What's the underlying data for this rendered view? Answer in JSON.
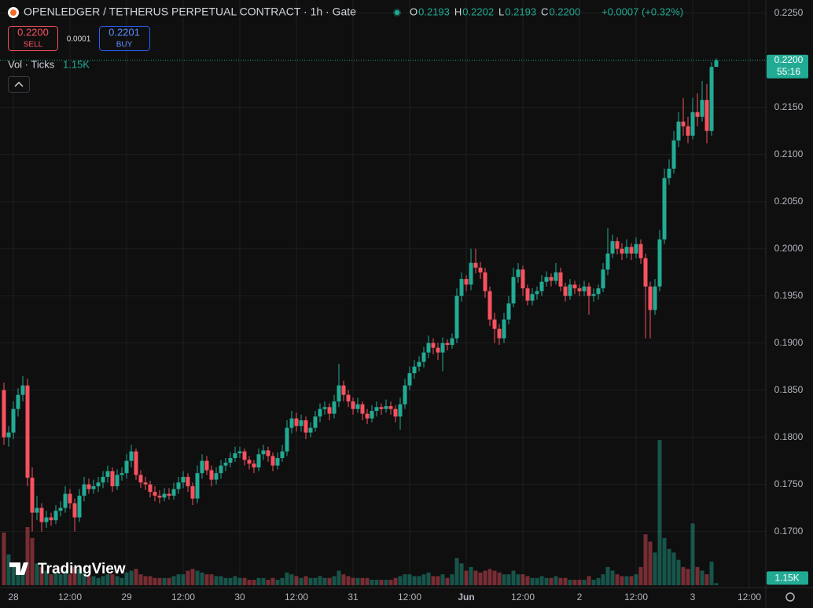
{
  "header": {
    "symbol": "OPENLEDGER / TETHERUS PERPETUAL CONTRACT · 1h · Gate",
    "ohlc": [
      {
        "key": "O",
        "value": "0.2193"
      },
      {
        "key": "H",
        "value": "0.2202"
      },
      {
        "key": "L",
        "value": "0.2193"
      },
      {
        "key": "C",
        "value": "0.2200"
      }
    ],
    "change": "+0.0007 (+0.32%)"
  },
  "trade": {
    "sell_price": "0.2200",
    "sell": "SELL",
    "spread": "0.0001",
    "buy_price": "0.2201",
    "buy": "BUY"
  },
  "volume_legend": {
    "label": "Vol · Ticks",
    "value": "1.15K"
  },
  "branding": "TradingView",
  "chart_data": {
    "type": "candlestick",
    "up_color": "#22ab94",
    "down_color": "#f7525f",
    "grid": true,
    "ylim": [
      0.1643,
      0.2264
    ],
    "volume_ylim": [
      0,
      80
    ],
    "yticks": [
      {
        "value": 0.17,
        "label": "0.1700"
      },
      {
        "value": 0.175,
        "label": "0.1750"
      },
      {
        "value": 0.18,
        "label": "0.1800"
      },
      {
        "value": 0.185,
        "label": "0.1850"
      },
      {
        "value": 0.19,
        "label": "0.1900"
      },
      {
        "value": 0.195,
        "label": "0.1950"
      },
      {
        "value": 0.2,
        "label": "0.2000"
      },
      {
        "value": 0.205,
        "label": "0.2050"
      },
      {
        "value": 0.21,
        "label": "0.2100"
      },
      {
        "value": 0.215,
        "label": "0.2150"
      },
      {
        "value": 0.225,
        "label": "0.2250"
      }
    ],
    "last_price": {
      "value": 0.22,
      "label": "0.2200"
    },
    "countdown": "55:16",
    "last_volume": {
      "value": 1.15,
      "label": "1.15K"
    },
    "categories": [
      null,
      null,
      "28",
      null,
      null,
      null,
      null,
      null,
      null,
      null,
      null,
      null,
      null,
      null,
      "12:00",
      null,
      null,
      null,
      null,
      null,
      null,
      null,
      null,
      null,
      null,
      null,
      "29",
      null,
      null,
      null,
      null,
      null,
      null,
      null,
      null,
      null,
      null,
      null,
      "12:00",
      null,
      null,
      null,
      null,
      null,
      null,
      null,
      null,
      null,
      null,
      null,
      "30",
      null,
      null,
      null,
      null,
      null,
      null,
      null,
      null,
      null,
      null,
      null,
      "12:00",
      null,
      null,
      null,
      null,
      null,
      null,
      null,
      null,
      null,
      null,
      null,
      "31",
      null,
      null,
      null,
      null,
      null,
      null,
      null,
      null,
      null,
      null,
      null,
      "12:00",
      null,
      null,
      null,
      null,
      null,
      null,
      null,
      null,
      null,
      null,
      null,
      "Jun",
      null,
      null,
      null,
      null,
      null,
      null,
      null,
      null,
      null,
      null,
      null,
      "12:00",
      null,
      null,
      null,
      null,
      null,
      null,
      null,
      null,
      null,
      null,
      null,
      "2",
      null,
      null,
      null,
      null,
      null,
      null,
      null,
      null,
      null,
      null,
      null,
      "12:00",
      null,
      null,
      null,
      null,
      null,
      null,
      null,
      null,
      null,
      null,
      null,
      "3",
      null,
      null,
      null,
      null,
      null,
      null,
      null,
      null,
      null,
      null,
      null,
      "12:00",
      null
    ],
    "candles": [
      [
        0.185,
        0.1858,
        0.1792,
        0.18,
        29
      ],
      [
        0.18,
        0.1812,
        0.179,
        0.1805,
        17
      ],
      [
        0.1805,
        0.1838,
        0.1798,
        0.183,
        12
      ],
      [
        0.183,
        0.1852,
        0.1822,
        0.1845,
        10
      ],
      [
        0.1845,
        0.1865,
        0.1838,
        0.1855,
        9
      ],
      [
        0.1855,
        0.1862,
        0.1748,
        0.1757,
        32
      ],
      [
        0.1757,
        0.1768,
        0.17,
        0.172,
        26
      ],
      [
        0.172,
        0.1738,
        0.1712,
        0.1725,
        12
      ],
      [
        0.1725,
        0.173,
        0.17,
        0.171,
        10
      ],
      [
        0.171,
        0.1722,
        0.1704,
        0.1715,
        8
      ],
      [
        0.1715,
        0.172,
        0.1706,
        0.1712,
        6
      ],
      [
        0.1712,
        0.1728,
        0.1708,
        0.1722,
        7
      ],
      [
        0.1722,
        0.1732,
        0.1716,
        0.1725,
        6
      ],
      [
        0.1725,
        0.1748,
        0.172,
        0.174,
        8
      ],
      [
        0.174,
        0.1745,
        0.1724,
        0.173,
        6
      ],
      [
        0.173,
        0.1735,
        0.17,
        0.1715,
        10
      ],
      [
        0.1715,
        0.1745,
        0.171,
        0.1738,
        9
      ],
      [
        0.1738,
        0.1758,
        0.1732,
        0.175,
        7
      ],
      [
        0.175,
        0.1756,
        0.174,
        0.1745,
        5
      ],
      [
        0.1745,
        0.1755,
        0.174,
        0.1748,
        5
      ],
      [
        0.1748,
        0.1758,
        0.1742,
        0.1752,
        4
      ],
      [
        0.1752,
        0.1764,
        0.1746,
        0.1758,
        5
      ],
      [
        0.1758,
        0.177,
        0.1752,
        0.1764,
        6
      ],
      [
        0.1764,
        0.1768,
        0.1742,
        0.1748,
        6
      ],
      [
        0.1748,
        0.1766,
        0.1744,
        0.176,
        5
      ],
      [
        0.176,
        0.1768,
        0.1754,
        0.1762,
        4
      ],
      [
        0.1762,
        0.1782,
        0.1756,
        0.1775,
        7
      ],
      [
        0.1775,
        0.1792,
        0.1768,
        0.1785,
        8
      ],
      [
        0.1785,
        0.1788,
        0.1755,
        0.176,
        9
      ],
      [
        0.176,
        0.1765,
        0.1746,
        0.1752,
        6
      ],
      [
        0.1752,
        0.1758,
        0.1744,
        0.175,
        5
      ],
      [
        0.175,
        0.1754,
        0.1736,
        0.1742,
        5
      ],
      [
        0.1742,
        0.1748,
        0.1732,
        0.1738,
        4
      ],
      [
        0.1738,
        0.1744,
        0.173,
        0.1736,
        4
      ],
      [
        0.1736,
        0.1746,
        0.1732,
        0.174,
        4
      ],
      [
        0.174,
        0.1746,
        0.1734,
        0.1738,
        4
      ],
      [
        0.1738,
        0.1752,
        0.1734,
        0.1745,
        5
      ],
      [
        0.1745,
        0.1758,
        0.174,
        0.1752,
        6
      ],
      [
        0.1752,
        0.1764,
        0.1746,
        0.1758,
        6
      ],
      [
        0.1758,
        0.1762,
        0.1742,
        0.1748,
        8
      ],
      [
        0.1748,
        0.1752,
        0.1728,
        0.1735,
        9
      ],
      [
        0.1735,
        0.177,
        0.173,
        0.1762,
        8
      ],
      [
        0.1762,
        0.1782,
        0.1756,
        0.1775,
        7
      ],
      [
        0.1775,
        0.178,
        0.176,
        0.1765,
        6
      ],
      [
        0.1765,
        0.177,
        0.1748,
        0.1755,
        6
      ],
      [
        0.1755,
        0.1768,
        0.175,
        0.1762,
        5
      ],
      [
        0.1762,
        0.1776,
        0.1756,
        0.177,
        5
      ],
      [
        0.177,
        0.1778,
        0.1764,
        0.1773,
        4
      ],
      [
        0.1773,
        0.1784,
        0.1768,
        0.1778,
        4
      ],
      [
        0.1778,
        0.179,
        0.1774,
        0.1783,
        5
      ],
      [
        0.1783,
        0.179,
        0.1778,
        0.1785,
        4
      ],
      [
        0.1785,
        0.1788,
        0.177,
        0.1776,
        4
      ],
      [
        0.1776,
        0.178,
        0.1766,
        0.1772,
        3
      ],
      [
        0.1772,
        0.1776,
        0.1762,
        0.1768,
        3
      ],
      [
        0.1768,
        0.1788,
        0.1764,
        0.1782,
        4
      ],
      [
        0.1782,
        0.1792,
        0.1776,
        0.1786,
        4
      ],
      [
        0.1786,
        0.179,
        0.1774,
        0.178,
        3
      ],
      [
        0.178,
        0.1784,
        0.1764,
        0.177,
        4
      ],
      [
        0.177,
        0.1784,
        0.1766,
        0.1778,
        3
      ],
      [
        0.1778,
        0.1792,
        0.1774,
        0.1785,
        4
      ],
      [
        0.1785,
        0.1818,
        0.178,
        0.181,
        7
      ],
      [
        0.181,
        0.1828,
        0.1804,
        0.182,
        6
      ],
      [
        0.182,
        0.1826,
        0.1806,
        0.1812,
        5
      ],
      [
        0.1812,
        0.1824,
        0.1806,
        0.1818,
        4
      ],
      [
        0.1818,
        0.1822,
        0.1798,
        0.1805,
        5
      ],
      [
        0.1805,
        0.1816,
        0.18,
        0.181,
        4
      ],
      [
        0.181,
        0.1828,
        0.1806,
        0.1822,
        4
      ],
      [
        0.1822,
        0.1836,
        0.1816,
        0.183,
        5
      ],
      [
        0.183,
        0.1838,
        0.1824,
        0.1832,
        4
      ],
      [
        0.1832,
        0.1836,
        0.1818,
        0.1825,
        4
      ],
      [
        0.1825,
        0.1845,
        0.182,
        0.1838,
        5
      ],
      [
        0.1838,
        0.1878,
        0.1832,
        0.1855,
        8
      ],
      [
        0.1855,
        0.186,
        0.1838,
        0.1845,
        6
      ],
      [
        0.1845,
        0.185,
        0.1832,
        0.1838,
        5
      ],
      [
        0.1838,
        0.1842,
        0.1824,
        0.183,
        4
      ],
      [
        0.183,
        0.1842,
        0.1826,
        0.1835,
        4
      ],
      [
        0.1835,
        0.1838,
        0.1818,
        0.1825,
        4
      ],
      [
        0.1825,
        0.183,
        0.1814,
        0.182,
        4
      ],
      [
        0.182,
        0.1834,
        0.1816,
        0.1828,
        3
      ],
      [
        0.1828,
        0.1838,
        0.1822,
        0.1832,
        3
      ],
      [
        0.1832,
        0.1836,
        0.1824,
        0.183,
        3
      ],
      [
        0.183,
        0.184,
        0.1826,
        0.1833,
        3
      ],
      [
        0.1833,
        0.1838,
        0.1824,
        0.183,
        3
      ],
      [
        0.183,
        0.1834,
        0.1816,
        0.1822,
        4
      ],
      [
        0.1822,
        0.1842,
        0.1808,
        0.1835,
        5
      ],
      [
        0.1835,
        0.1862,
        0.183,
        0.1855,
        6
      ],
      [
        0.1855,
        0.1875,
        0.185,
        0.1868,
        6
      ],
      [
        0.1868,
        0.1882,
        0.1862,
        0.1875,
        5
      ],
      [
        0.1875,
        0.1886,
        0.187,
        0.188,
        5
      ],
      [
        0.188,
        0.1896,
        0.1874,
        0.189,
        6
      ],
      [
        0.189,
        0.1908,
        0.1884,
        0.19,
        7
      ],
      [
        0.19,
        0.1905,
        0.1888,
        0.1895,
        5
      ],
      [
        0.1895,
        0.19,
        0.1882,
        0.189,
        5
      ],
      [
        0.189,
        0.1906,
        0.187,
        0.19,
        6
      ],
      [
        0.19,
        0.1904,
        0.1892,
        0.1898,
        4
      ],
      [
        0.1898,
        0.191,
        0.1894,
        0.1905,
        6
      ],
      [
        0.1905,
        0.1958,
        0.19,
        0.195,
        15
      ],
      [
        0.195,
        0.1975,
        0.1944,
        0.1968,
        12
      ],
      [
        0.1968,
        0.1972,
        0.1955,
        0.1962,
        8
      ],
      [
        0.1962,
        0.2,
        0.1956,
        0.1985,
        10
      ],
      [
        0.1985,
        0.2,
        0.1974,
        0.198,
        8
      ],
      [
        0.198,
        0.1986,
        0.1968,
        0.1975,
        7
      ],
      [
        0.1975,
        0.198,
        0.1948,
        0.1955,
        8
      ],
      [
        0.1955,
        0.196,
        0.1918,
        0.1925,
        9
      ],
      [
        0.1925,
        0.1932,
        0.19,
        0.1915,
        8
      ],
      [
        0.1915,
        0.192,
        0.1898,
        0.1905,
        7
      ],
      [
        0.1905,
        0.1932,
        0.19,
        0.1925,
        6
      ],
      [
        0.1925,
        0.195,
        0.192,
        0.1942,
        6
      ],
      [
        0.1942,
        0.198,
        0.1938,
        0.197,
        8
      ],
      [
        0.197,
        0.1985,
        0.1964,
        0.1978,
        6
      ],
      [
        0.1978,
        0.1982,
        0.195,
        0.1958,
        6
      ],
      [
        0.1958,
        0.1962,
        0.194,
        0.1945,
        5
      ],
      [
        0.1945,
        0.1958,
        0.194,
        0.1952,
        4
      ],
      [
        0.1952,
        0.196,
        0.1946,
        0.1955,
        4
      ],
      [
        0.1955,
        0.1972,
        0.195,
        0.1965,
        5
      ],
      [
        0.1965,
        0.1976,
        0.196,
        0.197,
        4
      ],
      [
        0.197,
        0.1974,
        0.196,
        0.1966,
        4
      ],
      [
        0.1966,
        0.1985,
        0.1962,
        0.1975,
        5
      ],
      [
        0.1975,
        0.198,
        0.1955,
        0.196,
        4
      ],
      [
        0.196,
        0.1964,
        0.1944,
        0.195,
        4
      ],
      [
        0.195,
        0.1968,
        0.1946,
        0.1962,
        3
      ],
      [
        0.1962,
        0.1966,
        0.1952,
        0.1958,
        3
      ],
      [
        0.1958,
        0.1962,
        0.195,
        0.1955,
        3
      ],
      [
        0.1955,
        0.1966,
        0.195,
        0.196,
        3
      ],
      [
        0.196,
        0.1964,
        0.193,
        0.195,
        5
      ],
      [
        0.195,
        0.1958,
        0.1944,
        0.1952,
        3
      ],
      [
        0.1952,
        0.1962,
        0.1946,
        0.1958,
        4
      ],
      [
        0.1958,
        0.1985,
        0.1954,
        0.1978,
        6
      ],
      [
        0.1978,
        0.2022,
        0.1972,
        0.1995,
        10
      ],
      [
        0.1995,
        0.2015,
        0.199,
        0.2008,
        8
      ],
      [
        0.2008,
        0.2012,
        0.1994,
        0.2,
        6
      ],
      [
        0.2,
        0.2006,
        0.1988,
        0.1995,
        5
      ],
      [
        0.1995,
        0.201,
        0.199,
        0.2002,
        5
      ],
      [
        0.2002,
        0.2006,
        0.1988,
        0.1995,
        5
      ],
      [
        0.1995,
        0.2012,
        0.199,
        0.2005,
        6
      ],
      [
        0.2005,
        0.201,
        0.1984,
        0.199,
        10
      ],
      [
        0.199,
        0.1995,
        0.1905,
        0.196,
        28
      ],
      [
        0.196,
        0.1965,
        0.1905,
        0.1935,
        24
      ],
      [
        0.1935,
        0.1968,
        0.193,
        0.196,
        18
      ],
      [
        0.196,
        0.202,
        0.1955,
        0.201,
        80
      ],
      [
        0.201,
        0.2085,
        0.2005,
        0.2075,
        26
      ],
      [
        0.2075,
        0.2095,
        0.2068,
        0.2085,
        20
      ],
      [
        0.2085,
        0.2125,
        0.208,
        0.2115,
        18
      ],
      [
        0.2115,
        0.2145,
        0.2108,
        0.2135,
        14
      ],
      [
        0.2135,
        0.216,
        0.212,
        0.213,
        10
      ],
      [
        0.213,
        0.214,
        0.2112,
        0.212,
        9
      ],
      [
        0.212,
        0.216,
        0.2116,
        0.2145,
        34
      ],
      [
        0.2145,
        0.2165,
        0.213,
        0.214,
        10
      ],
      [
        0.214,
        0.2178,
        0.2135,
        0.2158,
        8
      ],
      [
        0.2158,
        0.2175,
        0.2112,
        0.2125,
        6
      ],
      [
        0.2125,
        0.2198,
        0.212,
        0.2193,
        13
      ],
      [
        0.2193,
        0.2202,
        0.2193,
        0.22,
        1.15
      ],
      null,
      null,
      null,
      null,
      null,
      null,
      null,
      null
    ]
  }
}
